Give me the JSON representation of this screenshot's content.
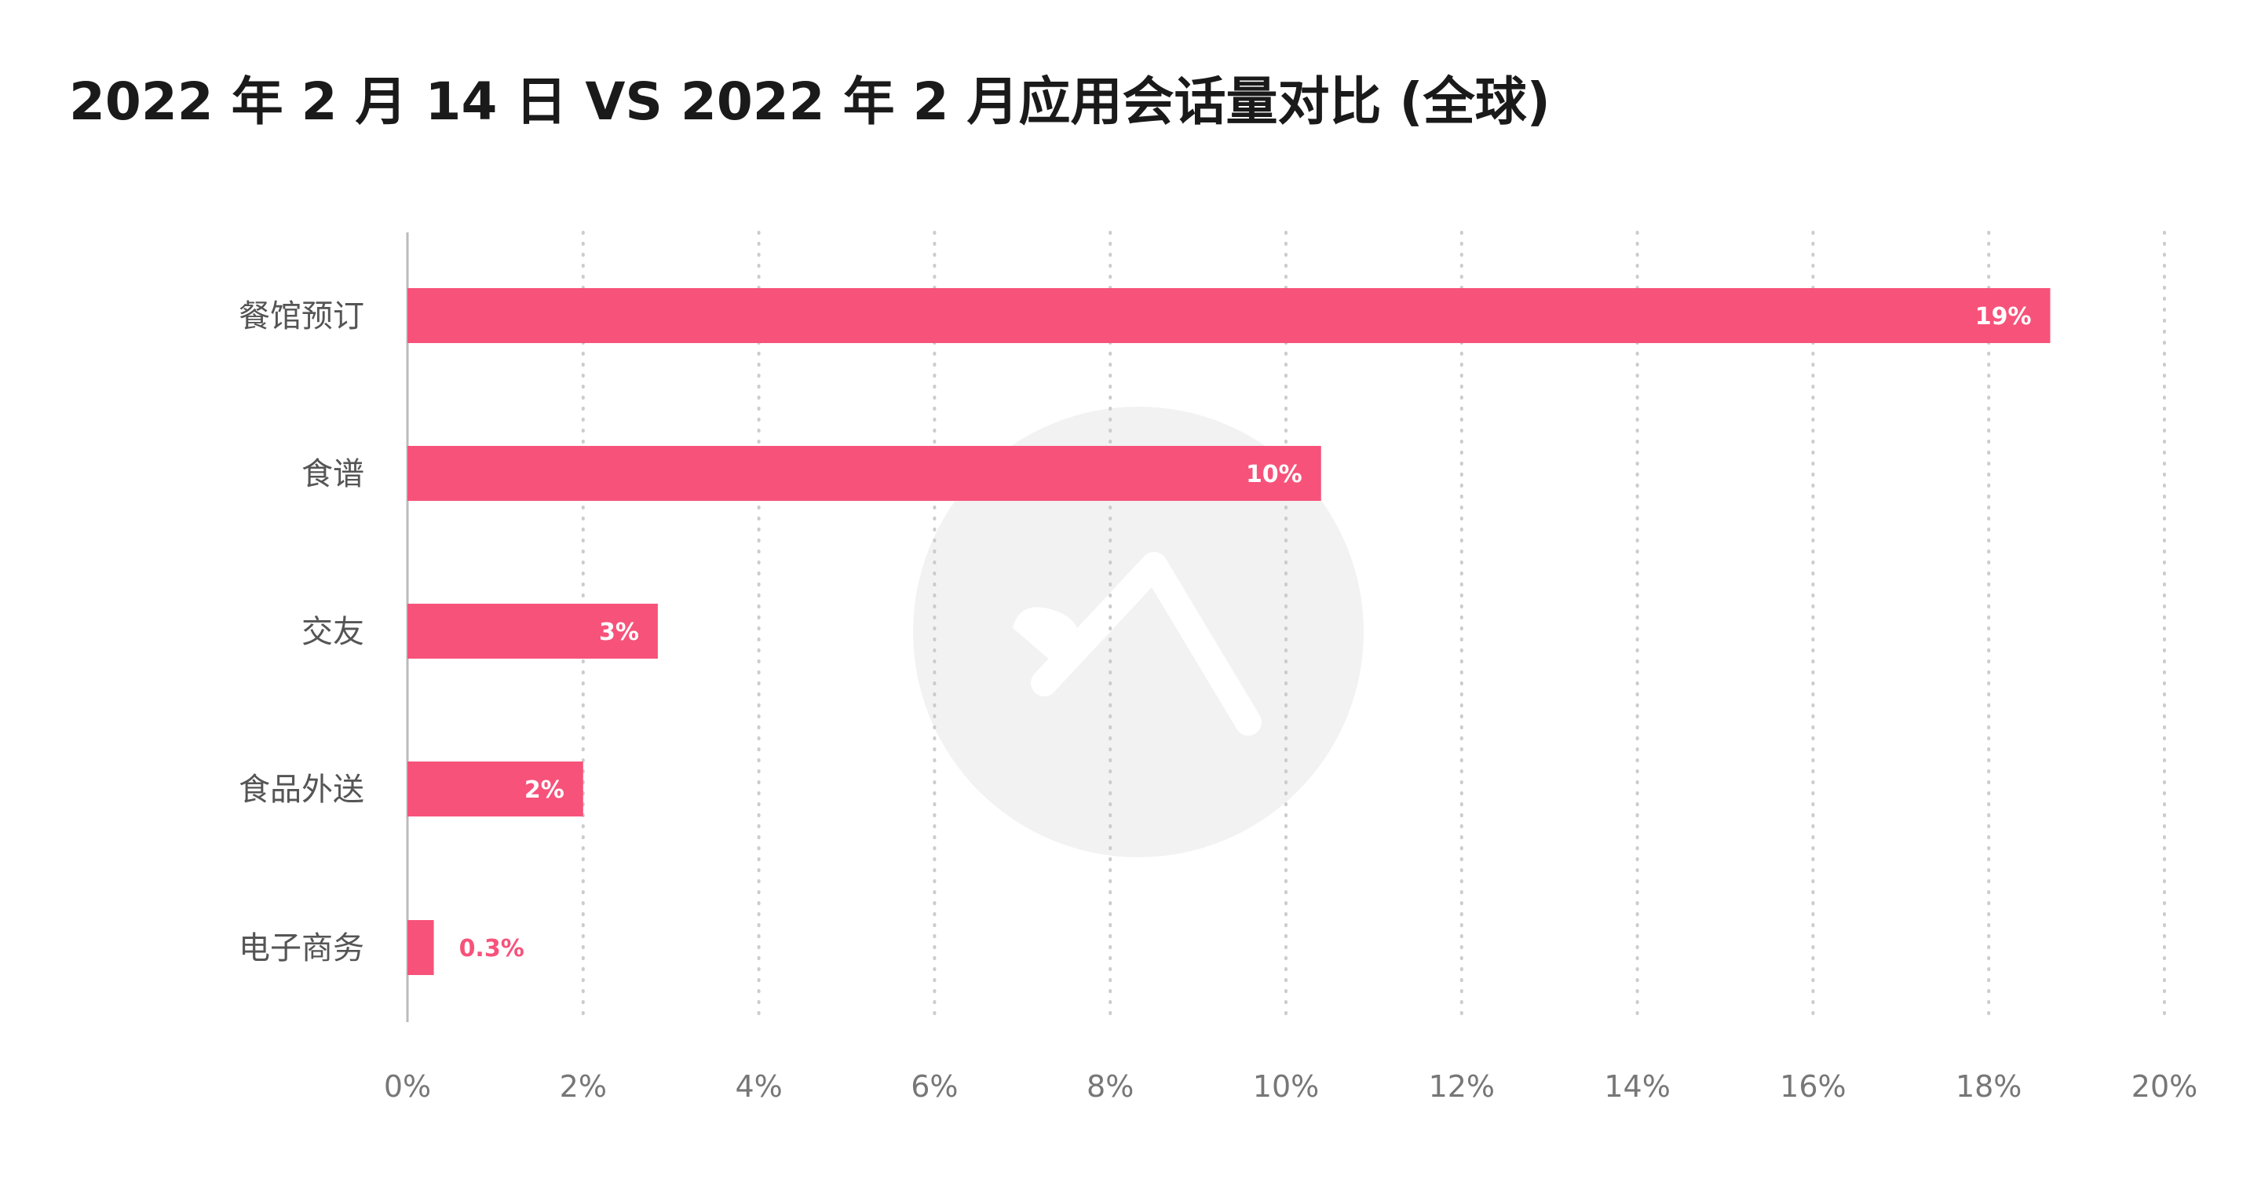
{
  "title": "2022 年 2 月 14 日 VS 2022 年 2 月应用会话量对比 (全球)",
  "colors": {
    "bar": "#f7527a",
    "grid": "#cccccc",
    "axis": "#bbbbbb",
    "watermark": "#f2f2f2"
  },
  "chart_data": {
    "type": "bar",
    "orientation": "horizontal",
    "categories": [
      "餐馆预订",
      "食谱",
      "交友",
      "食品外送",
      "电子商务"
    ],
    "values": [
      18.7,
      10.4,
      2.85,
      2.0,
      0.3
    ],
    "data_labels": [
      "19%",
      "10%",
      "3%",
      "2%",
      "0.3%"
    ],
    "xlim": [
      0,
      20
    ],
    "xticks": [
      0,
      2,
      4,
      6,
      8,
      10,
      12,
      14,
      16,
      18,
      20
    ],
    "xtick_labels": [
      "0%",
      "2%",
      "4%",
      "6%",
      "8%",
      "10%",
      "12%",
      "14%",
      "16%",
      "18%",
      "20%"
    ],
    "grid": "vertical-dotted",
    "legend": "none"
  }
}
